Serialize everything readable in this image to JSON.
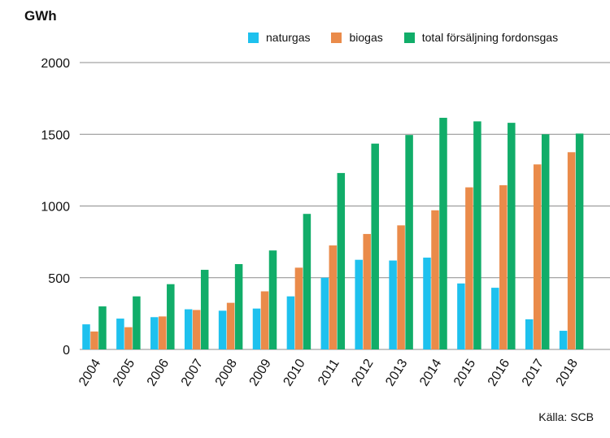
{
  "chart_data": {
    "type": "bar",
    "ylabel": "GWh",
    "ylim": [
      0,
      2000
    ],
    "yticks": [
      0,
      500,
      1000,
      1500,
      2000
    ],
    "categories": [
      "2004",
      "2005",
      "2006",
      "2007",
      "2008",
      "2009",
      "2010",
      "2011",
      "2012",
      "2013",
      "2014",
      "2015",
      "2016",
      "2017",
      "2018"
    ],
    "series": [
      {
        "name": "naturgas",
        "color": "#1ec1ee",
        "values": [
          175,
          215,
          225,
          280,
          270,
          285,
          370,
          500,
          625,
          620,
          640,
          460,
          430,
          210,
          130
        ]
      },
      {
        "name": "biogas",
        "color": "#ea8b4a",
        "values": [
          125,
          155,
          230,
          275,
          325,
          405,
          570,
          725,
          805,
          865,
          970,
          1130,
          1145,
          1290,
          1375
        ]
      },
      {
        "name": "total försäljning fordonsgas",
        "color": "#11ad69",
        "values": [
          300,
          370,
          455,
          555,
          595,
          690,
          945,
          1230,
          1435,
          1495,
          1615,
          1590,
          1580,
          1500,
          1505
        ]
      }
    ],
    "grid": true,
    "legend_position": "top"
  },
  "source": "Källa: SCB"
}
